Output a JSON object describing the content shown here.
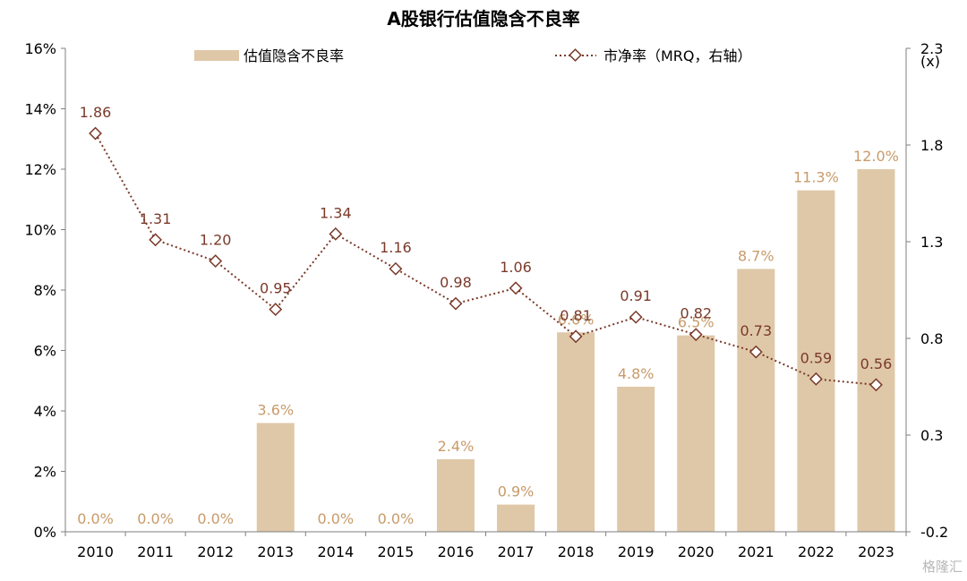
{
  "chart_data": {
    "type": "bar+line",
    "title": "A股银行估值隐含不良率",
    "categories": [
      "2010",
      "2011",
      "2012",
      "2013",
      "2014",
      "2015",
      "2016",
      "2017",
      "2018",
      "2019",
      "2020",
      "2021",
      "2022",
      "2023"
    ],
    "series": [
      {
        "name": "估值隐含不良率",
        "type": "bar",
        "axis": "left",
        "color": "#dfc8a8",
        "label_color": "#c89b6a",
        "values": [
          0.0,
          0.0,
          0.0,
          3.6,
          0.0,
          0.0,
          2.4,
          0.9,
          6.6,
          4.8,
          6.5,
          8.7,
          11.3,
          12.0
        ],
        "labels": [
          "0.0%",
          "0.0%",
          "0.0%",
          "3.6%",
          "0.0%",
          "0.0%",
          "2.4%",
          "0.9%",
          "6.6%",
          "4.8%",
          "6.5%",
          "8.7%",
          "11.3%",
          "12.0%"
        ]
      },
      {
        "name": "市净率（MRQ，右轴",
        "type": "line",
        "axis": "right",
        "color": "#7a3a2a",
        "marker": "diamond",
        "line_style": "dotted",
        "values": [
          1.86,
          1.31,
          1.2,
          0.95,
          1.34,
          1.16,
          0.98,
          1.06,
          0.81,
          0.91,
          0.82,
          0.73,
          0.59,
          0.56
        ],
        "labels": [
          "1.86",
          "1.31",
          "1.20",
          "0.95",
          "1.34",
          "1.16",
          "0.98",
          "1.06",
          "0.81",
          "0.91",
          "0.82",
          "0.73",
          "0.59",
          "0.56"
        ]
      }
    ],
    "y_left": {
      "min": 0,
      "max": 16,
      "step": 2,
      "ticks": [
        "0%",
        "2%",
        "4%",
        "6%",
        "8%",
        "10%",
        "12%",
        "14%",
        "16%"
      ]
    },
    "y_right": {
      "min": -0.2,
      "max": 2.3,
      "unit": "(x)",
      "ticks": [
        "-0.2",
        "0.3",
        "0.8",
        "1.3",
        "1.8",
        "2.3"
      ],
      "tick_values": [
        -0.2,
        0.3,
        0.8,
        1.3,
        1.8,
        2.3
      ]
    },
    "grid": false,
    "legend": "top"
  },
  "watermark": "格隆汇"
}
